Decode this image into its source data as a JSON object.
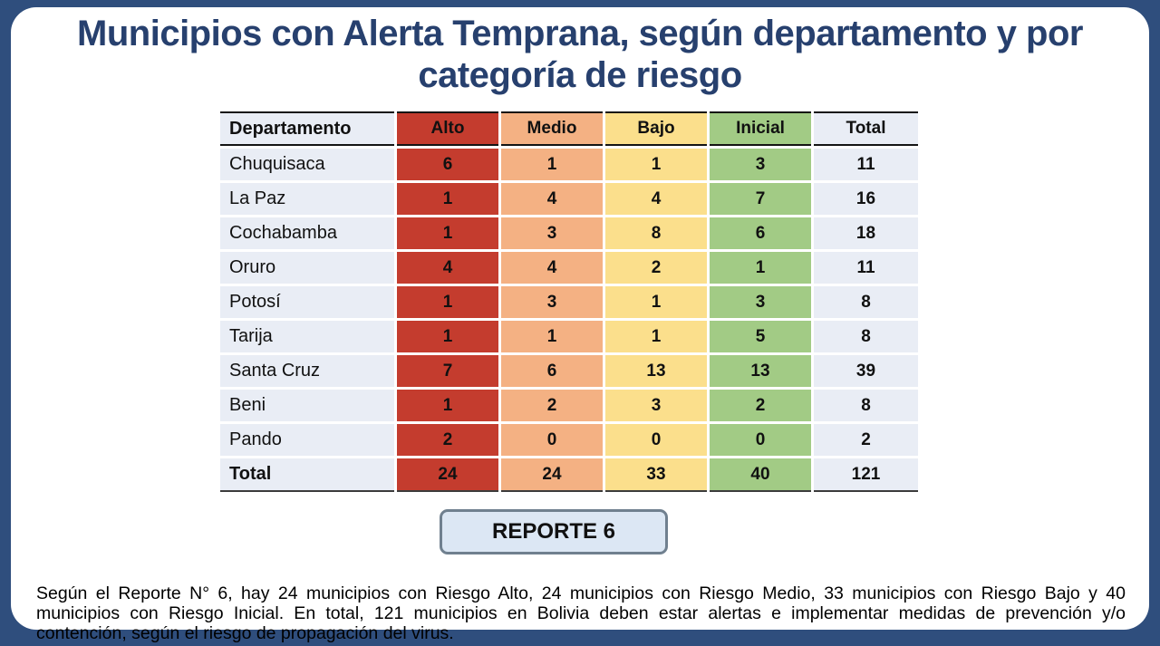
{
  "page": {
    "title": "Municipios con Alerta Temprana, según departamento y por categoría de riesgo"
  },
  "report_button": {
    "label": "REPORTE 6"
  },
  "footer": {
    "text": "Según el Reporte N° 6, hay 24 municipios con Riesgo Alto, 24 municipios con Riesgo Medio, 33 municipios con Riesgo Bajo y 40 municipios con Riesgo Inicial. En total, 121 municipios en Bolivia deben estar alertas e implementar medidas de prevención y/o contención, según el riesgo de propagación del virus."
  },
  "colors": {
    "frame_navy": "#2F4E7D",
    "title_text": "#27406E",
    "risk_alto": "#C43C2E",
    "risk_medio": "#F4B183",
    "risk_bajo": "#FBDF8C",
    "risk_inicial": "#A2CB85",
    "neutral_cell": "#E9EDF5",
    "button_bg": "#DCE7F4",
    "button_border": "#70808F"
  },
  "chart_data": {
    "type": "table",
    "title": "Municipios con Alerta Temprana, según departamento y por categoría de riesgo",
    "columns": [
      "Departamento",
      "Alto",
      "Medio",
      "Bajo",
      "Inicial",
      "Total"
    ],
    "rows": [
      [
        "Chuquisaca",
        6,
        1,
        1,
        3,
        11
      ],
      [
        "La Paz",
        1,
        4,
        4,
        7,
        16
      ],
      [
        "Cochabamba",
        1,
        3,
        8,
        6,
        18
      ],
      [
        "Oruro",
        4,
        4,
        2,
        1,
        11
      ],
      [
        "Potosí",
        1,
        3,
        1,
        3,
        8
      ],
      [
        "Tarija",
        1,
        1,
        1,
        5,
        8
      ],
      [
        "Santa Cruz",
        7,
        6,
        13,
        13,
        39
      ],
      [
        "Beni",
        1,
        2,
        3,
        2,
        8
      ],
      [
        "Pando",
        2,
        0,
        0,
        0,
        2
      ]
    ],
    "total_row": [
      "Total",
      24,
      24,
      33,
      40,
      121
    ],
    "column_color_keys": [
      "neutral_cell",
      "risk_alto",
      "risk_medio",
      "risk_bajo",
      "risk_inicial",
      "neutral_cell"
    ]
  }
}
